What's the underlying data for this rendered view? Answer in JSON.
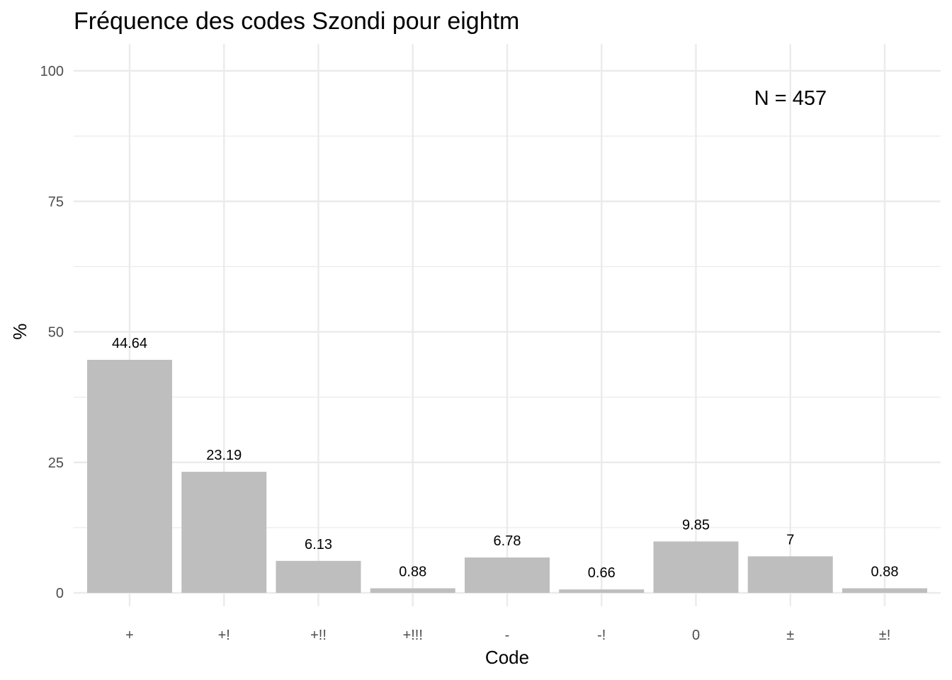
{
  "chart_data": {
    "type": "bar",
    "title": "Fréquence des codes Szondi pour eightm",
    "xlabel": "Code",
    "ylabel": "%",
    "categories": [
      "+",
      "+!",
      "+!!",
      "+!!!",
      "-",
      "-!",
      "0",
      "±",
      "±!"
    ],
    "values": [
      44.64,
      23.19,
      6.13,
      0.88,
      6.78,
      0.66,
      9.85,
      7,
      0.88
    ],
    "value_labels": [
      "44.64",
      "23.19",
      "6.13",
      "0.88",
      "6.78",
      "0.66",
      "9.85",
      "7",
      "0.88"
    ],
    "ylim": [
      0,
      100
    ],
    "yticks": [
      0,
      25,
      50,
      75,
      100
    ],
    "ytick_labels": [
      "0",
      "25",
      "50",
      "75",
      "100"
    ],
    "annotation": "N = 457",
    "bar_color": "#bebebe",
    "grid": true,
    "legend": "none"
  }
}
